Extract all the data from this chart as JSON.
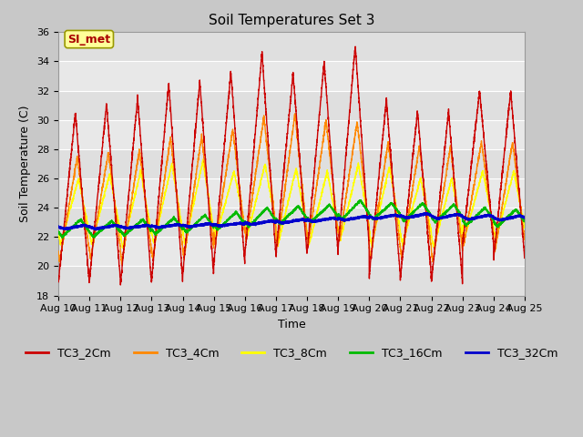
{
  "title": "Soil Temperatures Set 3",
  "xlabel": "Time",
  "ylabel": "Soil Temperature (C)",
  "ylim": [
    18,
    36
  ],
  "xlim": [
    0,
    15
  ],
  "xtick_labels": [
    "Aug 10",
    "Aug 11",
    "Aug 12",
    "Aug 13",
    "Aug 14",
    "Aug 15",
    "Aug 16",
    "Aug 17",
    "Aug 18",
    "Aug 19",
    "Aug 20",
    "Aug 21",
    "Aug 22",
    "Aug 23",
    "Aug 24",
    "Aug 25"
  ],
  "series_names": [
    "TC3_2Cm",
    "TC3_4Cm",
    "TC3_8Cm",
    "TC3_16Cm",
    "TC3_32Cm"
  ],
  "series_colors": [
    "#cc0000",
    "#ff8800",
    "#ffff00",
    "#00bb00",
    "#0000cc"
  ],
  "series_linewidths": [
    1.0,
    1.0,
    1.0,
    1.2,
    1.8
  ],
  "annotation_text": "SI_met",
  "title_fontsize": 11,
  "axis_fontsize": 9,
  "tick_fontsize": 8,
  "legend_fontsize": 9,
  "fig_facecolor": "#c8c8c8",
  "ax_facecolor": "#e8e8e8",
  "grid_color": "#ffffff",
  "annotation_facecolor": "#ffff99",
  "annotation_edgecolor": "#999900",
  "annotation_textcolor": "#aa0000"
}
